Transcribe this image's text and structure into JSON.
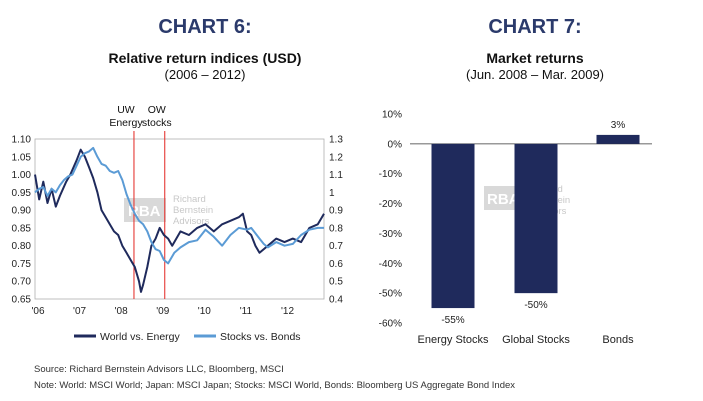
{
  "chart_data": [
    {
      "id": "chart6",
      "type": "line",
      "heading": "CHART 6:",
      "title": "Relative return indices (USD)",
      "subtitle": "(2006 – 2012)",
      "x_ticks": [
        "'06",
        "'07",
        "'08",
        "'09",
        "'10",
        "'11",
        "'12"
      ],
      "x_range": [
        2006.0,
        2012.95
      ],
      "y_left_ticks": [
        "1.10",
        "1.05",
        "1.00",
        "0.95",
        "0.90",
        "0.85",
        "0.80",
        "0.75",
        "0.70",
        "0.65"
      ],
      "y_left_range": [
        0.65,
        1.1
      ],
      "y_right_ticks": [
        "1.3",
        "1.2",
        "1.1",
        "1",
        "0.9",
        "0.8",
        "0.7",
        "0.6",
        "0.5",
        "0.4"
      ],
      "y_right_range": [
        0.4,
        1.3
      ],
      "annotations": [
        {
          "lines": [
            "UW",
            "Energy"
          ],
          "x": 2008.38
        },
        {
          "lines": [
            "OW",
            "stocks"
          ],
          "x": 2009.12
        }
      ],
      "series": [
        {
          "name": "World vs. Energy",
          "axis": "left",
          "color": "#1f2a5c",
          "x": [
            2006.0,
            2006.1,
            2006.2,
            2006.3,
            2006.4,
            2006.5,
            2006.6,
            2006.75,
            2006.85,
            2007.0,
            2007.1,
            2007.2,
            2007.3,
            2007.4,
            2007.5,
            2007.6,
            2007.7,
            2007.8,
            2007.9,
            2008.0,
            2008.1,
            2008.2,
            2008.3,
            2008.4,
            2008.5,
            2008.55,
            2008.6,
            2008.7,
            2008.8,
            2008.9,
            2009.0,
            2009.1,
            2009.2,
            2009.3,
            2009.5,
            2009.7,
            2009.9,
            2010.1,
            2010.3,
            2010.5,
            2010.7,
            2010.9,
            2011.0,
            2011.1,
            2011.2,
            2011.3,
            2011.4,
            2011.5,
            2011.6,
            2011.8,
            2012.0,
            2012.2,
            2012.4,
            2012.6,
            2012.8,
            2012.95
          ],
          "y": [
            1.0,
            0.93,
            0.98,
            0.92,
            0.96,
            0.91,
            0.94,
            0.98,
            1.0,
            1.04,
            1.07,
            1.05,
            1.02,
            0.99,
            0.95,
            0.9,
            0.88,
            0.86,
            0.84,
            0.83,
            0.8,
            0.78,
            0.76,
            0.74,
            0.7,
            0.67,
            0.69,
            0.74,
            0.8,
            0.82,
            0.85,
            0.83,
            0.82,
            0.8,
            0.84,
            0.83,
            0.85,
            0.86,
            0.84,
            0.86,
            0.87,
            0.88,
            0.89,
            0.84,
            0.83,
            0.8,
            0.78,
            0.79,
            0.8,
            0.82,
            0.81,
            0.82,
            0.81,
            0.85,
            0.86,
            0.89
          ]
        },
        {
          "name": "Stocks vs. Bonds",
          "axis": "right",
          "color": "#5b9bd5",
          "x": [
            2006.0,
            2006.1,
            2006.2,
            2006.3,
            2006.4,
            2006.5,
            2006.6,
            2006.7,
            2006.8,
            2006.9,
            2007.0,
            2007.1,
            2007.2,
            2007.3,
            2007.4,
            2007.5,
            2007.6,
            2007.7,
            2007.8,
            2007.9,
            2008.0,
            2008.1,
            2008.2,
            2008.3,
            2008.4,
            2008.5,
            2008.6,
            2008.7,
            2008.8,
            2008.9,
            2009.0,
            2009.1,
            2009.2,
            2009.35,
            2009.5,
            2009.7,
            2009.9,
            2010.1,
            2010.3,
            2010.5,
            2010.7,
            2010.9,
            2011.1,
            2011.2,
            2011.3,
            2011.4,
            2011.5,
            2011.6,
            2011.8,
            2012.0,
            2012.2,
            2012.4,
            2012.6,
            2012.8,
            2012.95
          ],
          "y": [
            1.0,
            1.02,
            1.03,
            0.98,
            1.02,
            1.0,
            1.04,
            1.07,
            1.09,
            1.1,
            1.15,
            1.2,
            1.22,
            1.23,
            1.25,
            1.2,
            1.16,
            1.15,
            1.12,
            1.11,
            1.12,
            1.07,
            0.99,
            0.93,
            0.88,
            0.84,
            0.82,
            0.78,
            0.72,
            0.68,
            0.67,
            0.62,
            0.6,
            0.66,
            0.69,
            0.72,
            0.73,
            0.79,
            0.75,
            0.7,
            0.76,
            0.8,
            0.79,
            0.8,
            0.77,
            0.74,
            0.71,
            0.69,
            0.72,
            0.7,
            0.71,
            0.76,
            0.79,
            0.8,
            0.8
          ]
        }
      ],
      "legend": [
        "World vs. Energy",
        "Stocks vs. Bonds"
      ],
      "watermark": {
        "logo": "RBA",
        "text": [
          "Richard",
          "Bernstein",
          "Advisors"
        ]
      }
    },
    {
      "id": "chart7",
      "type": "bar",
      "heading": "CHART 7:",
      "title": "Market returns",
      "subtitle": "(Jun. 2008 – Mar. 2009)",
      "categories": [
        "Energy Stocks",
        "Global Stocks",
        "Bonds"
      ],
      "values": [
        -55,
        -50,
        3
      ],
      "data_labels": [
        "-55%",
        "-50%",
        "3%"
      ],
      "color": "#1f2a5c",
      "ylim": [
        -60,
        10
      ],
      "y_ticks": [
        "10%",
        "0%",
        "-10%",
        "-20%",
        "-30%",
        "-40%",
        "-50%",
        "-60%"
      ],
      "y_tick_values": [
        10,
        0,
        -10,
        -20,
        -30,
        -40,
        -50,
        -60
      ],
      "watermark": {
        "logo": "RBA",
        "text": [
          "Richard",
          "Bernstein",
          "Advisors"
        ]
      }
    }
  ],
  "footer": {
    "source": "Source: Richard Bernstein Advisors LLC, Bloomberg, MSCI",
    "note": "Note: World: MSCI World; Japan: MSCI Japan; Stocks: MSCI World, Bonds: Bloomberg US Aggregate Bond Index"
  }
}
